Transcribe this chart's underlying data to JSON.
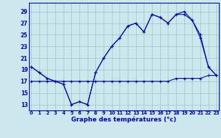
{
  "title": "",
  "xlabel": "Graphe des températures (°c)",
  "ylabel": "",
  "bg_color": "#cce8ee",
  "grid_color": "#aacccc",
  "line_color": "#0000bb",
  "x_ticks": [
    0,
    1,
    2,
    3,
    4,
    5,
    6,
    7,
    8,
    9,
    10,
    11,
    12,
    13,
    14,
    15,
    16,
    17,
    18,
    19,
    20,
    21,
    22,
    23
  ],
  "y_ticks": [
    13,
    15,
    17,
    19,
    21,
    23,
    25,
    27,
    29
  ],
  "xlim": [
    -0.3,
    23.3
  ],
  "ylim": [
    12.0,
    30.5
  ],
  "series": [
    [
      17.0,
      17.0,
      17.0,
      17.0,
      17.0,
      17.0,
      17.0,
      17.0,
      17.0,
      17.0,
      17.0,
      17.0,
      17.0,
      17.0,
      17.0,
      17.0,
      17.0,
      17.0,
      17.5,
      17.5,
      17.5,
      17.5,
      18.0,
      18.0
    ],
    [
      19.5,
      18.5,
      17.5,
      17.0,
      16.5,
      13.0,
      13.5,
      13.0,
      18.5,
      21.0,
      23.0,
      24.5,
      26.5,
      27.0,
      25.5,
      28.5,
      28.0,
      27.0,
      28.5,
      29.0,
      27.5,
      24.5,
      19.5,
      18.0
    ],
    [
      19.5,
      18.5,
      17.5,
      17.0,
      16.5,
      13.0,
      13.5,
      13.0,
      18.5,
      21.0,
      23.0,
      24.5,
      26.5,
      27.0,
      25.5,
      28.5,
      28.0,
      27.0,
      28.5,
      28.5,
      27.5,
      25.0,
      19.5,
      18.0
    ]
  ]
}
